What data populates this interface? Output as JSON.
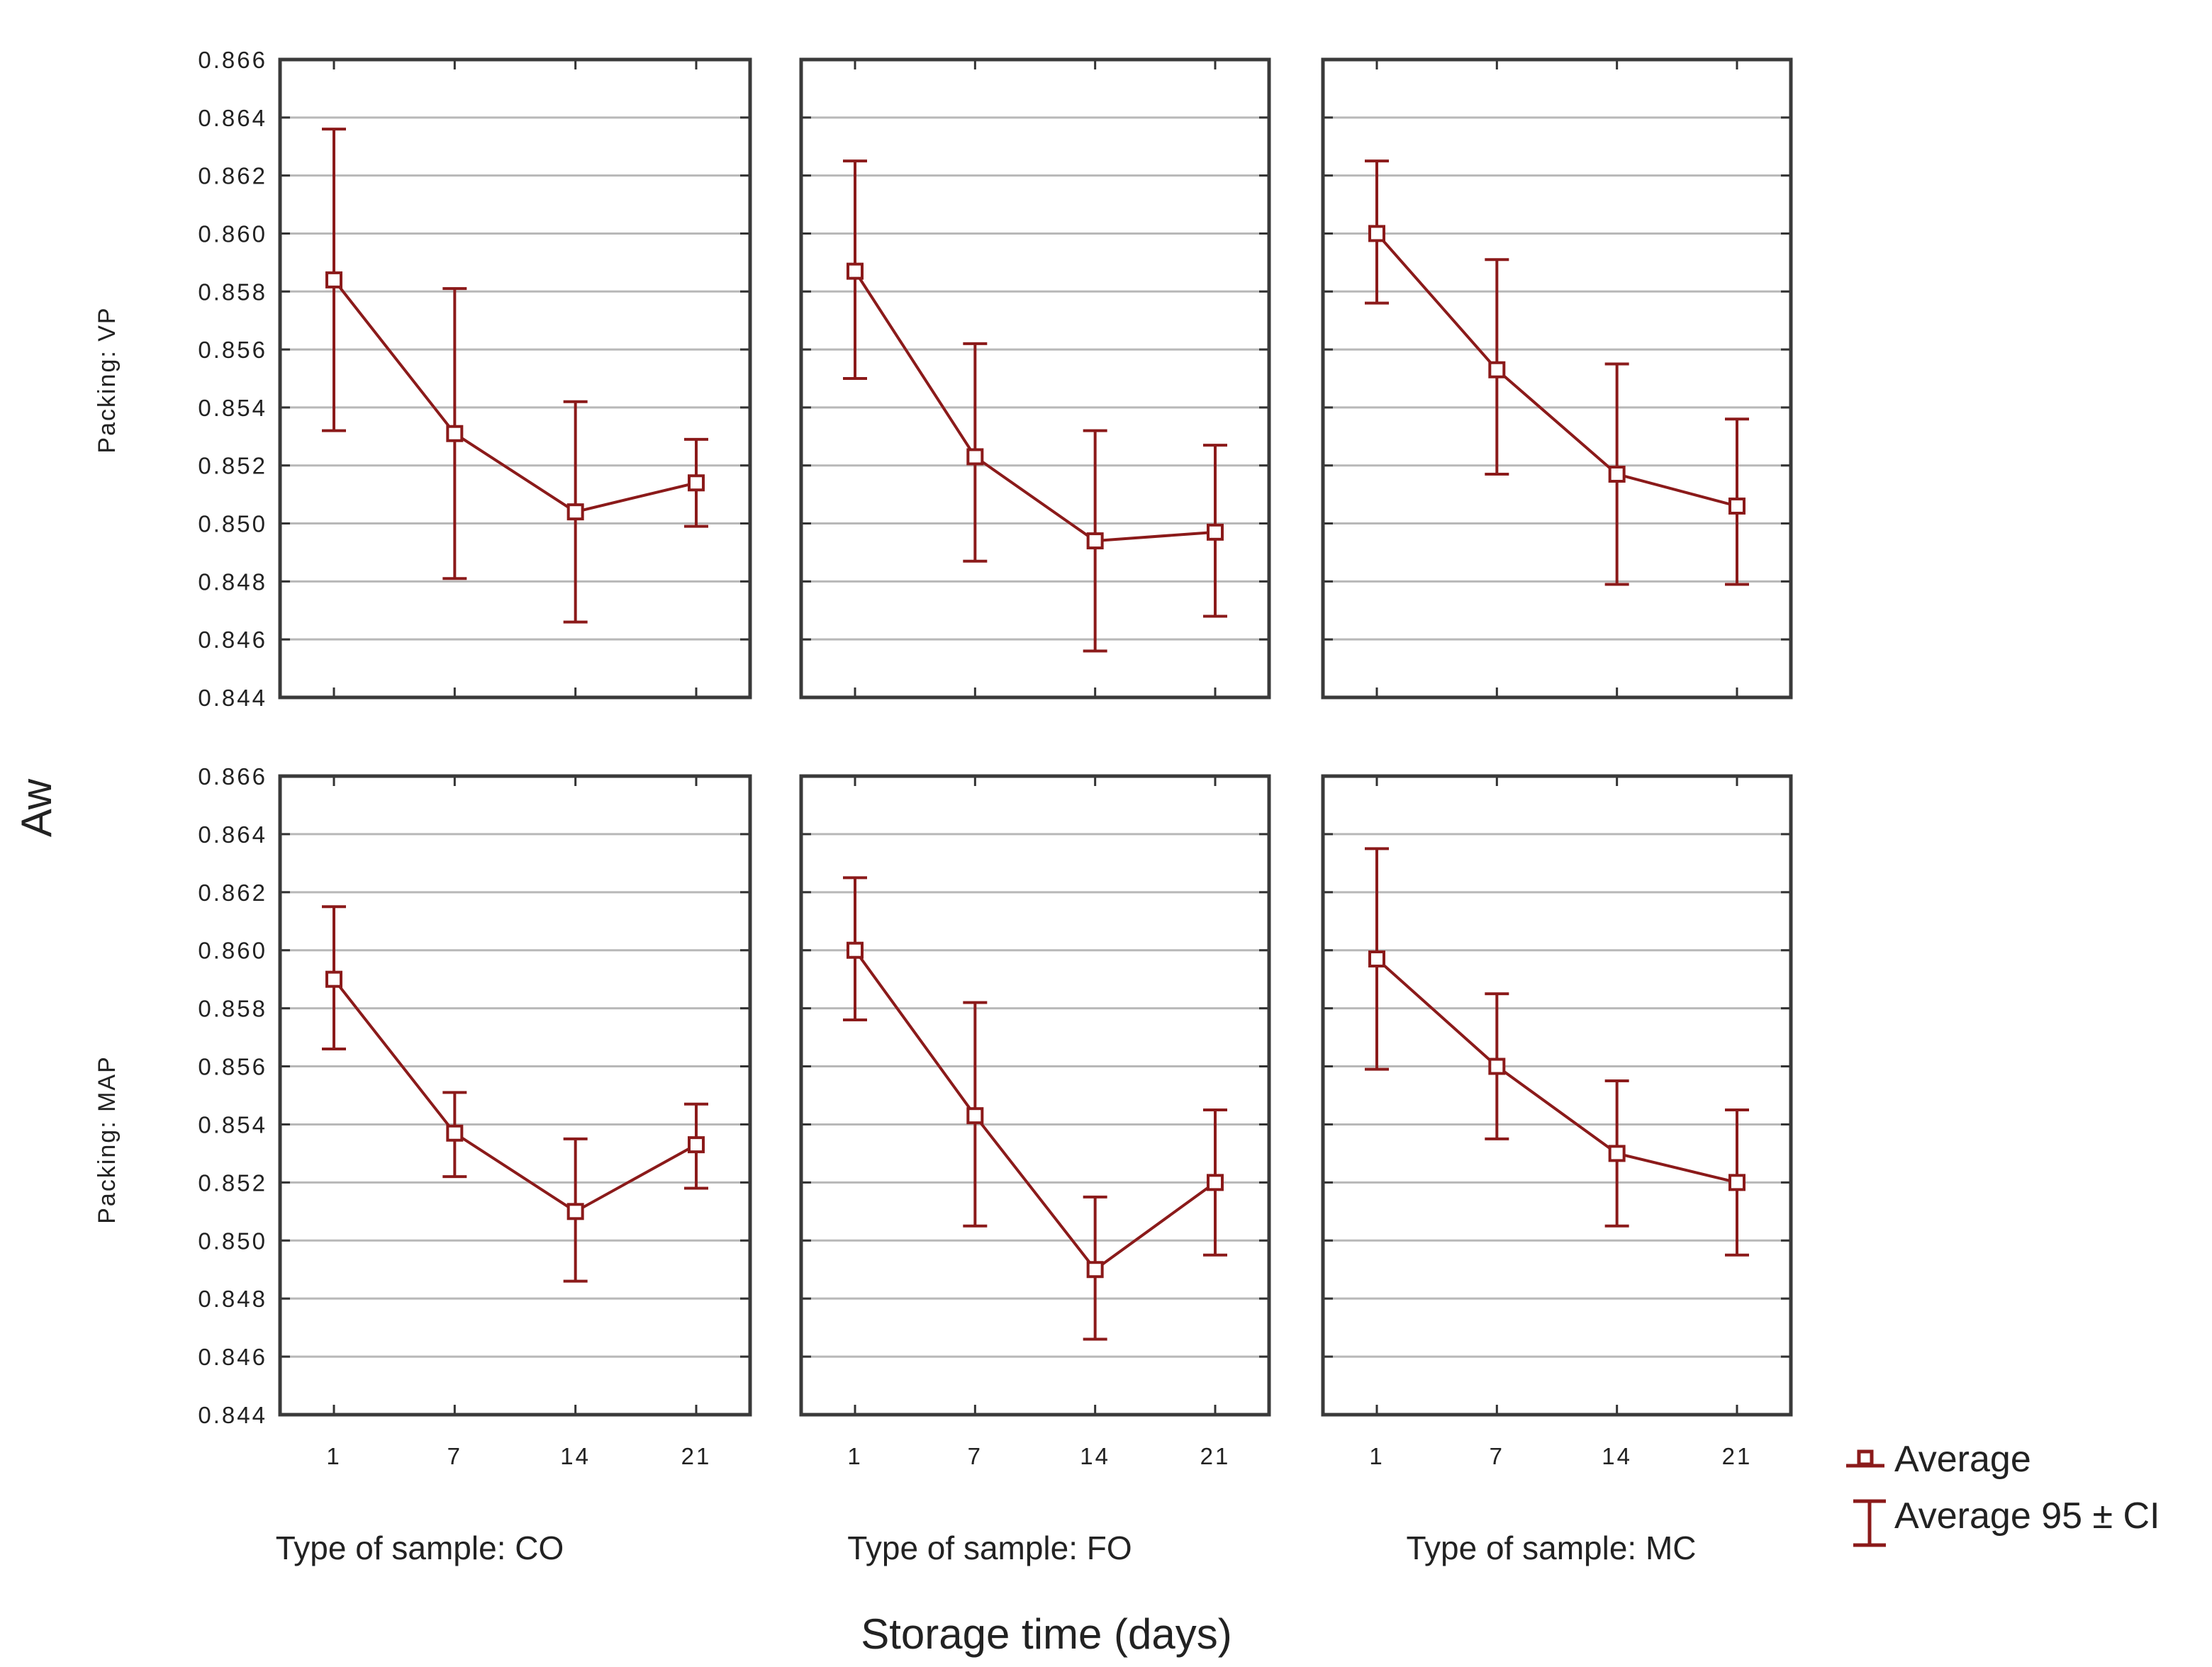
{
  "chart_data": {
    "type": "line",
    "layout": "facet-grid",
    "ylabel": "Aw",
    "xlabel": "Storage time (days)",
    "x": [
      "1",
      "7",
      "14",
      "21"
    ],
    "ylim": [
      0.844,
      0.866
    ],
    "y_ticks": [
      "0.866",
      "0.864",
      "0.862",
      "0.860",
      "0.858",
      "0.856",
      "0.854",
      "0.852",
      "0.850",
      "0.848",
      "0.846",
      "0.844"
    ],
    "grid": true,
    "color": "#8b1a1a",
    "rows": [
      "Packing: VP",
      "Packing: MAP"
    ],
    "columns": [
      "Type of sample: CO",
      "Type of sample: FO",
      "Type of sample: MC"
    ],
    "legend": {
      "position": "bottom-right",
      "average": "Average",
      "ci": "Average 95 ± CI"
    },
    "panels": [
      [
        {
          "mean": [
            0.8584,
            0.8531,
            0.8504,
            0.8514
          ],
          "low": [
            0.8532,
            0.8481,
            0.8466,
            0.8499
          ],
          "high": [
            0.8636,
            0.8581,
            0.8542,
            0.8529
          ]
        },
        {
          "mean": [
            0.8587,
            0.8523,
            0.8494,
            0.8497
          ],
          "low": [
            0.855,
            0.8487,
            0.8456,
            0.8468
          ],
          "high": [
            0.8625,
            0.8562,
            0.8532,
            0.8527
          ]
        },
        {
          "mean": [
            0.86,
            0.8553,
            0.8517,
            0.8506
          ],
          "low": [
            0.8576,
            0.8517,
            0.8479,
            0.8479
          ],
          "high": [
            0.8625,
            0.8591,
            0.8555,
            0.8536
          ]
        }
      ],
      [
        {
          "mean": [
            0.859,
            0.8537,
            0.851,
            0.8533
          ],
          "low": [
            0.8566,
            0.8522,
            0.8486,
            0.8518
          ],
          "high": [
            0.8615,
            0.8551,
            0.8535,
            0.8547
          ]
        },
        {
          "mean": [
            0.86,
            0.8543,
            0.849,
            0.852
          ],
          "low": [
            0.8576,
            0.8505,
            0.8466,
            0.8495
          ],
          "high": [
            0.8625,
            0.8582,
            0.8515,
            0.8545
          ]
        },
        {
          "mean": [
            0.8597,
            0.856,
            0.853,
            0.852
          ],
          "low": [
            0.8559,
            0.8535,
            0.8505,
            0.8495
          ],
          "high": [
            0.8635,
            0.8585,
            0.8555,
            0.8545
          ]
        }
      ]
    ]
  }
}
